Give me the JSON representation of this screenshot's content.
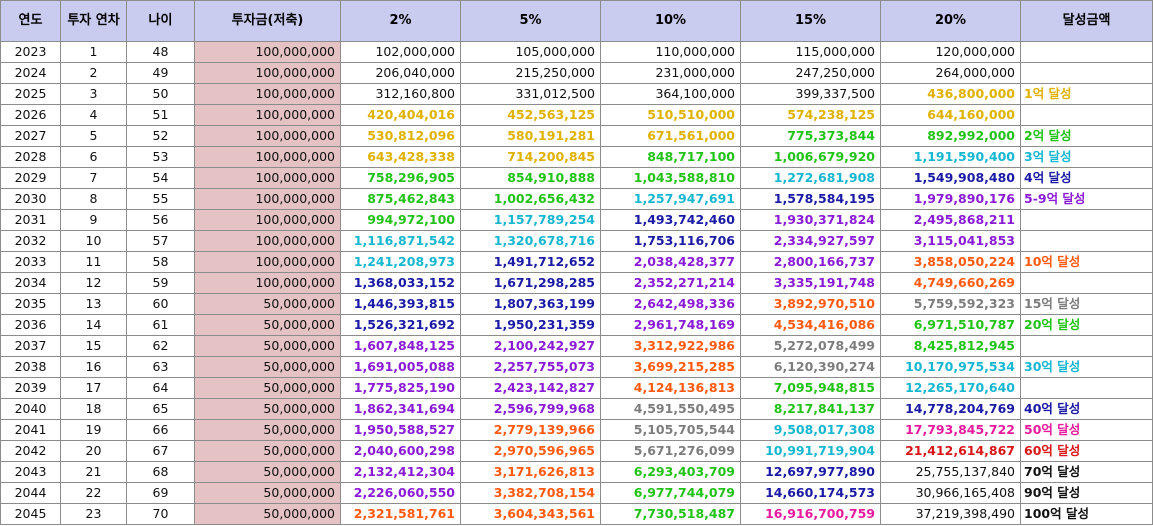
{
  "headers": [
    "연도",
    "투자 연차",
    "나이",
    "투자금(저축)",
    "2%",
    "5%",
    "10%",
    "15%",
    "20%",
    "달성금액"
  ],
  "colors": {
    "black": "#111111",
    "yellow": "#e0b200",
    "green": "#22c318",
    "teal": "#16b7d0",
    "navy": "#1a1aa6",
    "purple": "#8a1bd6",
    "orange": "#ff5a10",
    "gray": "#7d7d7d",
    "magenta": "#e81a9e",
    "red": "#d81818"
  },
  "rows": [
    {
      "year": "2023",
      "yr": "1",
      "age": "48",
      "inv": "100,000,000",
      "v": [
        [
          "102,000,000",
          "black"
        ],
        [
          "105,000,000",
          "black"
        ],
        [
          "110,000,000",
          "black"
        ],
        [
          "115,000,000",
          "black"
        ],
        [
          "120,000,000",
          "black"
        ]
      ],
      "note": [
        "",
        "black"
      ]
    },
    {
      "year": "2024",
      "yr": "2",
      "age": "49",
      "inv": "100,000,000",
      "v": [
        [
          "206,040,000",
          "black"
        ],
        [
          "215,250,000",
          "black"
        ],
        [
          "231,000,000",
          "black"
        ],
        [
          "247,250,000",
          "black"
        ],
        [
          "264,000,000",
          "black"
        ]
      ],
      "note": [
        "",
        "black"
      ]
    },
    {
      "year": "2025",
      "yr": "3",
      "age": "50",
      "inv": "100,000,000",
      "v": [
        [
          "312,160,800",
          "black"
        ],
        [
          "331,012,500",
          "black"
        ],
        [
          "364,100,000",
          "black"
        ],
        [
          "399,337,500",
          "black"
        ],
        [
          "436,800,000",
          "yellow"
        ]
      ],
      "note": [
        "1억 달성",
        "yellow"
      ]
    },
    {
      "year": "2026",
      "yr": "4",
      "age": "51",
      "inv": "100,000,000",
      "v": [
        [
          "420,404,016",
          "yellow"
        ],
        [
          "452,563,125",
          "yellow"
        ],
        [
          "510,510,000",
          "yellow"
        ],
        [
          "574,238,125",
          "yellow"
        ],
        [
          "644,160,000",
          "yellow"
        ]
      ],
      "note": [
        "",
        "black"
      ]
    },
    {
      "year": "2027",
      "yr": "5",
      "age": "52",
      "inv": "100,000,000",
      "v": [
        [
          "530,812,096",
          "yellow"
        ],
        [
          "580,191,281",
          "yellow"
        ],
        [
          "671,561,000",
          "yellow"
        ],
        [
          "775,373,844",
          "green"
        ],
        [
          "892,992,000",
          "green"
        ]
      ],
      "note": [
        "2억 달성",
        "green"
      ]
    },
    {
      "year": "2028",
      "yr": "6",
      "age": "53",
      "inv": "100,000,000",
      "v": [
        [
          "643,428,338",
          "yellow"
        ],
        [
          "714,200,845",
          "yellow"
        ],
        [
          "848,717,100",
          "green"
        ],
        [
          "1,006,679,920",
          "green"
        ],
        [
          "1,191,590,400",
          "teal"
        ]
      ],
      "note": [
        "3억 달성",
        "teal"
      ]
    },
    {
      "year": "2029",
      "yr": "7",
      "age": "54",
      "inv": "100,000,000",
      "v": [
        [
          "758,296,905",
          "green"
        ],
        [
          "854,910,888",
          "green"
        ],
        [
          "1,043,588,810",
          "green"
        ],
        [
          "1,272,681,908",
          "teal"
        ],
        [
          "1,549,908,480",
          "navy"
        ]
      ],
      "note": [
        "4억 달성",
        "navy"
      ]
    },
    {
      "year": "2030",
      "yr": "8",
      "age": "55",
      "inv": "100,000,000",
      "v": [
        [
          "875,462,843",
          "green"
        ],
        [
          "1,002,656,432",
          "green"
        ],
        [
          "1,257,947,691",
          "teal"
        ],
        [
          "1,578,584,195",
          "navy"
        ],
        [
          "1,979,890,176",
          "purple"
        ]
      ],
      "note": [
        "5-9억 달성",
        "purple"
      ]
    },
    {
      "year": "2031",
      "yr": "9",
      "age": "56",
      "inv": "100,000,000",
      "v": [
        [
          "994,972,100",
          "green"
        ],
        [
          "1,157,789,254",
          "teal"
        ],
        [
          "1,493,742,460",
          "navy"
        ],
        [
          "1,930,371,824",
          "purple"
        ],
        [
          "2,495,868,211",
          "purple"
        ]
      ],
      "note": [
        "",
        "black"
      ]
    },
    {
      "year": "2032",
      "yr": "10",
      "age": "57",
      "inv": "100,000,000",
      "v": [
        [
          "1,116,871,542",
          "teal"
        ],
        [
          "1,320,678,716",
          "teal"
        ],
        [
          "1,753,116,706",
          "navy"
        ],
        [
          "2,334,927,597",
          "purple"
        ],
        [
          "3,115,041,853",
          "purple"
        ]
      ],
      "note": [
        "",
        "black"
      ]
    },
    {
      "year": "2033",
      "yr": "11",
      "age": "58",
      "inv": "100,000,000",
      "v": [
        [
          "1,241,208,973",
          "teal"
        ],
        [
          "1,491,712,652",
          "navy"
        ],
        [
          "2,038,428,377",
          "purple"
        ],
        [
          "2,800,166,737",
          "purple"
        ],
        [
          "3,858,050,224",
          "orange"
        ]
      ],
      "note": [
        "10억 달성",
        "orange"
      ]
    },
    {
      "year": "2034",
      "yr": "12",
      "age": "59",
      "inv": "100,000,000",
      "v": [
        [
          "1,368,033,152",
          "navy"
        ],
        [
          "1,671,298,285",
          "navy"
        ],
        [
          "2,352,271,214",
          "purple"
        ],
        [
          "3,335,191,748",
          "purple"
        ],
        [
          "4,749,660,269",
          "orange"
        ]
      ],
      "note": [
        "",
        "black"
      ]
    },
    {
      "year": "2035",
      "yr": "13",
      "age": "60",
      "inv": "50,000,000",
      "v": [
        [
          "1,446,393,815",
          "navy"
        ],
        [
          "1,807,363,199",
          "navy"
        ],
        [
          "2,642,498,336",
          "purple"
        ],
        [
          "3,892,970,510",
          "orange"
        ],
        [
          "5,759,592,323",
          "gray"
        ]
      ],
      "note": [
        "15억 달성",
        "gray"
      ]
    },
    {
      "year": "2036",
      "yr": "14",
      "age": "61",
      "inv": "50,000,000",
      "v": [
        [
          "1,526,321,692",
          "navy"
        ],
        [
          "1,950,231,359",
          "navy"
        ],
        [
          "2,961,748,169",
          "purple"
        ],
        [
          "4,534,416,086",
          "orange"
        ],
        [
          "6,971,510,787",
          "green"
        ]
      ],
      "note": [
        "20억 달성",
        "green"
      ]
    },
    {
      "year": "2037",
      "yr": "15",
      "age": "62",
      "inv": "50,000,000",
      "v": [
        [
          "1,607,848,125",
          "purple"
        ],
        [
          "2,100,242,927",
          "purple"
        ],
        [
          "3,312,922,986",
          "orange"
        ],
        [
          "5,272,078,499",
          "gray"
        ],
        [
          "8,425,812,945",
          "green"
        ]
      ],
      "note": [
        "",
        "black"
      ]
    },
    {
      "year": "2038",
      "yr": "16",
      "age": "63",
      "inv": "50,000,000",
      "v": [
        [
          "1,691,005,088",
          "purple"
        ],
        [
          "2,257,755,073",
          "purple"
        ],
        [
          "3,699,215,285",
          "orange"
        ],
        [
          "6,120,390,274",
          "gray"
        ],
        [
          "10,170,975,534",
          "teal"
        ]
      ],
      "note": [
        "30억 달성",
        "teal"
      ]
    },
    {
      "year": "2039",
      "yr": "17",
      "age": "64",
      "inv": "50,000,000",
      "v": [
        [
          "1,775,825,190",
          "purple"
        ],
        [
          "2,423,142,827",
          "purple"
        ],
        [
          "4,124,136,813",
          "orange"
        ],
        [
          "7,095,948,815",
          "green"
        ],
        [
          "12,265,170,640",
          "teal"
        ]
      ],
      "note": [
        "",
        "black"
      ]
    },
    {
      "year": "2040",
      "yr": "18",
      "age": "65",
      "inv": "50,000,000",
      "v": [
        [
          "1,862,341,694",
          "purple"
        ],
        [
          "2,596,799,968",
          "purple"
        ],
        [
          "4,591,550,495",
          "gray"
        ],
        [
          "8,217,841,137",
          "green"
        ],
        [
          "14,778,204,769",
          "navy"
        ]
      ],
      "note": [
        "40억 달성",
        "navy"
      ]
    },
    {
      "year": "2041",
      "yr": "19",
      "age": "66",
      "inv": "50,000,000",
      "v": [
        [
          "1,950,588,527",
          "purple"
        ],
        [
          "2,779,139,966",
          "orange"
        ],
        [
          "5,105,705,544",
          "gray"
        ],
        [
          "9,508,017,308",
          "teal"
        ],
        [
          "17,793,845,722",
          "magenta"
        ]
      ],
      "note": [
        "50억 달성",
        "magenta"
      ]
    },
    {
      "year": "2042",
      "yr": "20",
      "age": "67",
      "inv": "50,000,000",
      "v": [
        [
          "2,040,600,298",
          "purple"
        ],
        [
          "2,970,596,965",
          "orange"
        ],
        [
          "5,671,276,099",
          "gray"
        ],
        [
          "10,991,719,904",
          "teal"
        ],
        [
          "21,412,614,867",
          "red"
        ]
      ],
      "note": [
        "60억 달성",
        "red"
      ]
    },
    {
      "year": "2043",
      "yr": "21",
      "age": "68",
      "inv": "50,000,000",
      "v": [
        [
          "2,132,412,304",
          "purple"
        ],
        [
          "3,171,626,813",
          "orange"
        ],
        [
          "6,293,403,709",
          "green"
        ],
        [
          "12,697,977,890",
          "navy"
        ],
        [
          "25,755,137,840",
          "black"
        ]
      ],
      "note": [
        "70억 달성",
        "black"
      ]
    },
    {
      "year": "2044",
      "yr": "22",
      "age": "69",
      "inv": "50,000,000",
      "v": [
        [
          "2,226,060,550",
          "purple"
        ],
        [
          "3,382,708,154",
          "orange"
        ],
        [
          "6,977,744,079",
          "green"
        ],
        [
          "14,660,174,573",
          "navy"
        ],
        [
          "30,966,165,408",
          "black"
        ]
      ],
      "note": [
        "90억 달성",
        "black"
      ]
    },
    {
      "year": "2045",
      "yr": "23",
      "age": "70",
      "inv": "50,000,000",
      "v": [
        [
          "2,321,581,761",
          "orange"
        ],
        [
          "3,604,343,561",
          "orange"
        ],
        [
          "7,730,518,487",
          "green"
        ],
        [
          "16,916,700,759",
          "magenta"
        ],
        [
          "37,219,398,490",
          "black"
        ]
      ],
      "note": [
        "100억 달성",
        "black"
      ]
    }
  ]
}
